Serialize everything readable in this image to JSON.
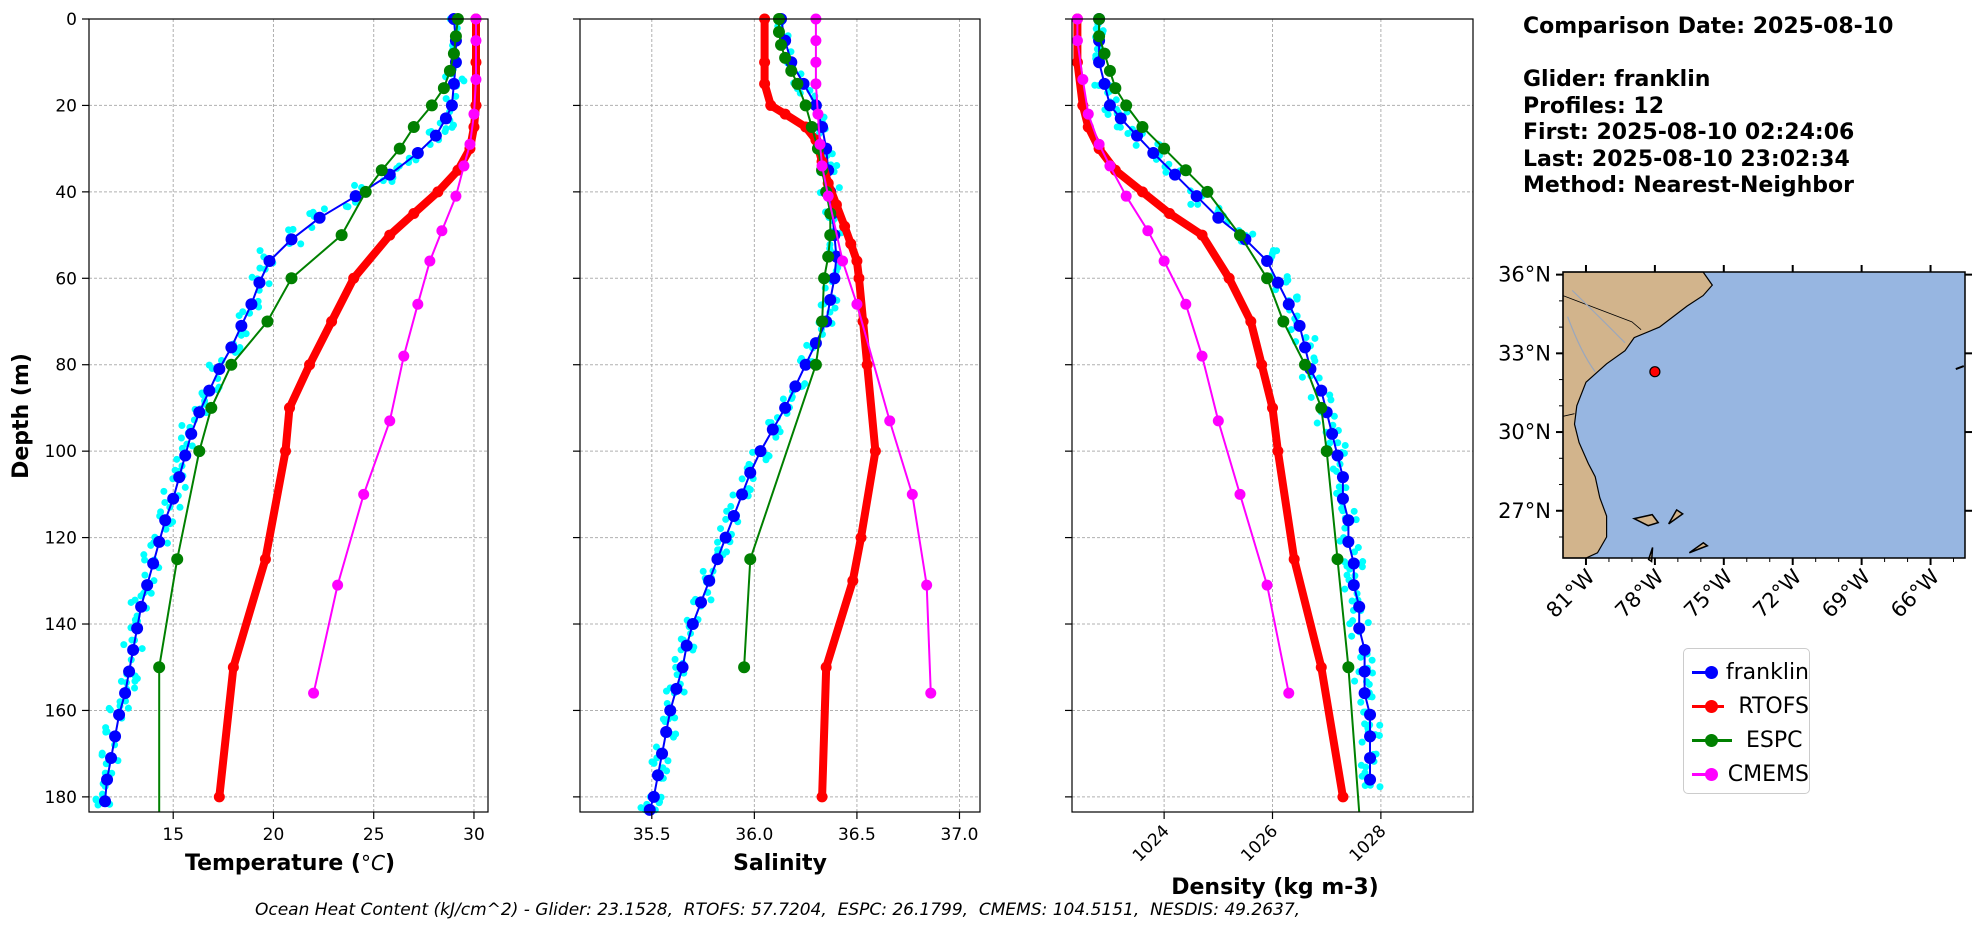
{
  "info": {
    "comparison_date": "Comparison Date: 2025-08-10",
    "glider": "Glider: franklin",
    "profiles": "Profiles: 12",
    "first": "First: 2025-08-10 02:24:06",
    "last": "Last: 2025-08-10 23:02:34",
    "method": "Method: Nearest-Neighbor"
  },
  "footer": "Ocean Heat Content (kJ/cm^2) - Glider: 23.1528,  RTOFS: 57.7204,  ESPC: 26.1799,  CMEMS: 104.5151,  NESDIS: 49.2637,",
  "legend": [
    {
      "label": "franklin",
      "color": "#0000ff"
    },
    {
      "label": "RTOFS",
      "color": "#ff0000"
    },
    {
      "label": "ESPC",
      "color": "#008000"
    },
    {
      "label": "CMEMS",
      "color": "#ff00ff"
    }
  ],
  "colors": {
    "glider_points": "#00ffff",
    "franklin": "#0000ff",
    "rtofs": "#ff0000",
    "espc": "#008000",
    "cmems": "#ff00ff",
    "land": "#d2b48c",
    "ocean": "#97b6e1",
    "grid": "#b0b0b0"
  },
  "chart_data": [
    {
      "type": "line",
      "xlabel": "Temperature (°C)",
      "ylabel": "Depth (m)",
      "xlim": [
        10.8,
        30.7
      ],
      "ylim": [
        183.5,
        0
      ],
      "xticks": [
        15,
        20,
        25,
        30
      ],
      "yticks": [
        0,
        20,
        40,
        60,
        80,
        100,
        120,
        140,
        160,
        180
      ],
      "grid": true,
      "series": [
        {
          "name": "franklin",
          "x": [
            29.0,
            29.1,
            29.1,
            29.0,
            28.9,
            28.6,
            28.1,
            27.2,
            25.8,
            24.1,
            22.3,
            20.9,
            19.8,
            19.3,
            18.9,
            18.4,
            17.9,
            17.3,
            16.8,
            16.3,
            15.9,
            15.6,
            15.3,
            15.0,
            14.6,
            14.3,
            14.0,
            13.7,
            13.4,
            13.2,
            13.0,
            12.8,
            12.6,
            12.3,
            12.1,
            11.9,
            11.7,
            11.6
          ],
          "y": [
            0,
            5,
            10,
            15,
            20,
            23,
            27,
            31,
            36,
            41,
            46,
            51,
            56,
            61,
            66,
            71,
            76,
            81,
            86,
            91,
            96,
            101,
            106,
            111,
            116,
            121,
            126,
            131,
            136,
            141,
            146,
            151,
            156,
            161,
            166,
            171,
            176,
            181
          ]
        },
        {
          "name": "RTOFS",
          "x": [
            30.1,
            30.1,
            30.1,
            30.0,
            29.8,
            29.2,
            28.2,
            27.0,
            25.8,
            24.0,
            22.9,
            21.8,
            20.8,
            20.6,
            19.6,
            18.0,
            17.3
          ],
          "y": [
            0,
            10,
            20,
            25,
            30,
            35,
            40,
            45,
            50,
            60,
            70,
            80,
            90,
            100,
            125,
            150,
            180
          ]
        },
        {
          "name": "ESPC",
          "x": [
            29.2,
            29.1,
            29.0,
            28.8,
            28.5,
            27.9,
            27.0,
            26.3,
            25.4,
            24.6,
            23.4,
            20.9,
            19.7,
            17.9,
            16.9,
            16.3,
            15.2,
            14.3,
            14.3
          ],
          "y": [
            0,
            4,
            8,
            12,
            16,
            20,
            25,
            30,
            35,
            40,
            50,
            60,
            70,
            80,
            90,
            100,
            125,
            150,
            183.5
          ]
        },
        {
          "name": "CMEMS",
          "x": [
            30.1,
            30.1,
            30.1,
            30.0,
            29.8,
            29.5,
            29.1,
            28.4,
            27.8,
            27.2,
            26.5,
            25.8,
            24.5,
            23.2,
            22.0
          ],
          "y": [
            0,
            5,
            14,
            22,
            29,
            34,
            41,
            49,
            56,
            66,
            78,
            93,
            110,
            131,
            156
          ]
        }
      ]
    },
    {
      "type": "line",
      "xlabel": "Salinity",
      "ylabel": "",
      "xlim": [
        35.15,
        37.1
      ],
      "ylim": [
        183.5,
        0
      ],
      "xticks": [
        35.5,
        36.0,
        36.5,
        37.0
      ],
      "grid": true,
      "series": [
        {
          "name": "franklin",
          "x": [
            36.13,
            36.15,
            36.18,
            36.24,
            36.3,
            36.33,
            36.35,
            36.36,
            36.37,
            36.38,
            36.39,
            36.4,
            36.39,
            36.37,
            36.35,
            36.3,
            36.25,
            36.2,
            36.15,
            36.09,
            36.03,
            35.98,
            35.94,
            35.9,
            35.86,
            35.82,
            35.78,
            35.74,
            35.7,
            35.67,
            35.65,
            35.62,
            35.59,
            35.57,
            35.55,
            35.53,
            35.51,
            35.49
          ],
          "y": [
            0,
            5,
            10,
            15,
            20,
            25,
            30,
            35,
            40,
            45,
            50,
            55,
            60,
            65,
            70,
            75,
            80,
            85,
            90,
            95,
            100,
            105,
            110,
            115,
            120,
            125,
            130,
            135,
            140,
            145,
            150,
            155,
            160,
            165,
            170,
            175,
            180,
            183
          ]
        },
        {
          "name": "RTOFS",
          "x": [
            36.05,
            36.05,
            36.05,
            36.08,
            36.15,
            36.25,
            36.3,
            36.33,
            36.36,
            36.4,
            36.44,
            36.47,
            36.5,
            36.51,
            36.53,
            36.55,
            36.59,
            36.52,
            36.48,
            36.35,
            36.33
          ],
          "y": [
            0,
            10,
            15,
            20,
            22,
            25,
            28,
            33,
            38,
            43,
            48,
            52,
            56,
            60,
            70,
            80,
            100,
            120,
            130,
            150,
            180
          ]
        },
        {
          "name": "ESPC",
          "x": [
            36.12,
            36.12,
            36.13,
            36.15,
            36.18,
            36.21,
            36.25,
            36.28,
            36.31,
            36.33,
            36.35,
            36.37,
            36.37,
            36.36,
            36.34,
            36.33,
            36.3,
            35.98,
            35.95
          ],
          "y": [
            0,
            3,
            6,
            9,
            12,
            15,
            20,
            25,
            30,
            35,
            40,
            45,
            50,
            55,
            60,
            70,
            80,
            125,
            150
          ]
        },
        {
          "name": "CMEMS",
          "x": [
            36.3,
            36.3,
            36.3,
            36.3,
            36.31,
            36.32,
            36.33,
            36.36,
            36.43,
            36.5,
            36.66,
            36.77,
            36.84,
            36.86
          ],
          "y": [
            0,
            5,
            10,
            15,
            22,
            29,
            34,
            41,
            56,
            66,
            93,
            110,
            131,
            156
          ]
        }
      ]
    },
    {
      "type": "line",
      "xlabel": "Density (kg m-3)",
      "ylabel": "",
      "xlim": [
        1022.3,
        1029.7
      ],
      "ylim": [
        183.5,
        0
      ],
      "xticks": [
        1024,
        1026,
        1028
      ],
      "grid": true,
      "series": [
        {
          "name": "franklin",
          "x": [
            1022.8,
            1022.8,
            1022.8,
            1022.9,
            1023.0,
            1023.2,
            1023.5,
            1023.8,
            1024.2,
            1024.6,
            1025.0,
            1025.5,
            1025.9,
            1026.1,
            1026.3,
            1026.5,
            1026.6,
            1026.7,
            1026.9,
            1027.0,
            1027.1,
            1027.2,
            1027.3,
            1027.3,
            1027.4,
            1027.4,
            1027.5,
            1027.5,
            1027.6,
            1027.6,
            1027.7,
            1027.7,
            1027.7,
            1027.8,
            1027.8,
            1027.8,
            1027.8
          ],
          "y": [
            0,
            5,
            10,
            15,
            20,
            23,
            27,
            31,
            36,
            41,
            46,
            51,
            56,
            61,
            66,
            71,
            76,
            81,
            86,
            91,
            96,
            101,
            106,
            111,
            116,
            121,
            126,
            131,
            136,
            141,
            146,
            151,
            156,
            161,
            166,
            171,
            176
          ]
        },
        {
          "name": "RTOFS",
          "x": [
            1022.4,
            1022.4,
            1022.5,
            1022.6,
            1022.8,
            1023.1,
            1023.6,
            1024.1,
            1024.7,
            1025.2,
            1025.6,
            1025.8,
            1026.0,
            1026.1,
            1026.4,
            1026.9,
            1027.3
          ],
          "y": [
            0,
            10,
            20,
            25,
            30,
            35,
            40,
            45,
            50,
            60,
            70,
            80,
            90,
            100,
            125,
            150,
            180
          ]
        },
        {
          "name": "ESPC",
          "x": [
            1022.8,
            1022.8,
            1022.9,
            1023.0,
            1023.1,
            1023.3,
            1023.6,
            1024.0,
            1024.4,
            1024.8,
            1025.4,
            1025.9,
            1026.2,
            1026.6,
            1026.9,
            1027.0,
            1027.2,
            1027.4,
            1027.6
          ],
          "y": [
            0,
            4,
            8,
            12,
            16,
            20,
            25,
            30,
            35,
            40,
            50,
            60,
            70,
            80,
            90,
            100,
            125,
            150,
            183.5
          ]
        },
        {
          "name": "CMEMS",
          "x": [
            1022.4,
            1022.4,
            1022.5,
            1022.6,
            1022.8,
            1023.0,
            1023.3,
            1023.7,
            1024.0,
            1024.4,
            1024.7,
            1025.0,
            1025.4,
            1025.9,
            1026.3
          ],
          "y": [
            0,
            5,
            14,
            22,
            29,
            34,
            41,
            49,
            56,
            66,
            78,
            93,
            110,
            131,
            156
          ]
        }
      ]
    }
  ],
  "map": {
    "lat_labels": [
      "36°N",
      "33°N",
      "30°N",
      "27°N"
    ],
    "lat_values": [
      36,
      33,
      30,
      27
    ],
    "lon_labels": [
      "81°W",
      "78°W",
      "75°W",
      "72°W",
      "69°W",
      "66°W"
    ],
    "lon_values": [
      -81,
      -78,
      -75,
      -72,
      -69,
      -66
    ],
    "lon_range": [
      -82,
      -64.5
    ],
    "lat_range": [
      25.2,
      36.1
    ],
    "glider_position": {
      "lon": -78.0,
      "lat": 32.3
    }
  }
}
